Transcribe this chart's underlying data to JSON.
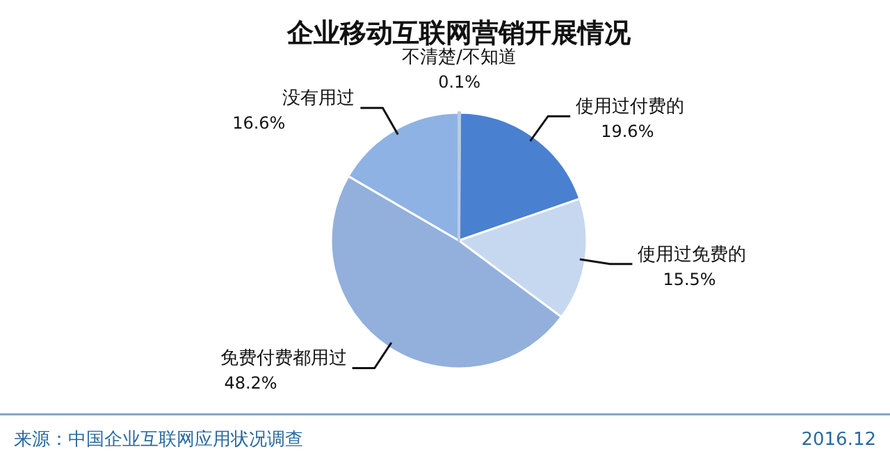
{
  "chart_data": {
    "type": "pie",
    "title": "企业移动互联网营销开展情况",
    "categories": [
      "不清楚/不知道",
      "使用过付费的",
      "使用过免费的",
      "免费付费都用过",
      "没有用过"
    ],
    "values": [
      0.1,
      19.6,
      15.5,
      48.2,
      16.6
    ],
    "value_labels": [
      "0.1%",
      "19.6%",
      "15.5%",
      "48.2%",
      "16.6%"
    ],
    "colors": [
      "#b8cbe6",
      "#4a80d0",
      "#c6d8f0",
      "#93b0dc",
      "#8fb2e4"
    ],
    "legend": false,
    "annotations": [
      "来源：中国企业互联网应用状况调查",
      "2016.12"
    ]
  }
}
